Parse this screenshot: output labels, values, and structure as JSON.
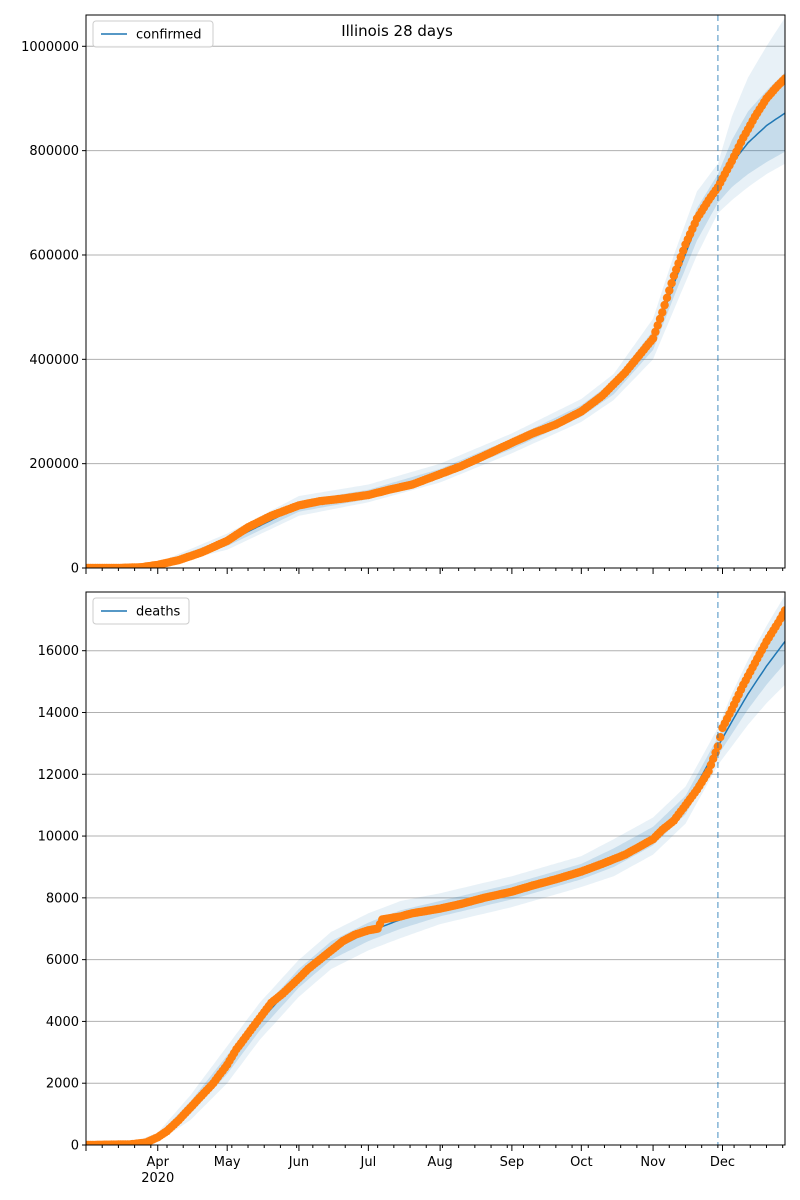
{
  "colors": {
    "fit": "#1f77b4",
    "observed": "#ff7f0e",
    "band": "#1f77b4",
    "grid": "#b0b0b0",
    "split": "#1f77b4"
  },
  "chart_data": [
    {
      "type": "line",
      "title": "Illinois 28 days",
      "legend": "upper-left",
      "grid": "y",
      "x_range": [
        "2020-03-01",
        "2020-12-28"
      ],
      "split_date": "2020-11-29",
      "ylim": [
        0,
        1060000
      ],
      "yticks": [
        0,
        200000,
        400000,
        600000,
        800000,
        1000000
      ],
      "ytick_labels": [
        "0",
        "200000",
        "400000",
        "600000",
        "800000",
        "1000000"
      ],
      "series": [
        {
          "name": "confirmed",
          "role": "fit"
        },
        {
          "role": "observed"
        }
      ],
      "observed": {
        "dates": [
          "2020-03-01",
          "2020-03-15",
          "2020-03-25",
          "2020-04-01",
          "2020-04-10",
          "2020-04-20",
          "2020-05-01",
          "2020-05-10",
          "2020-05-20",
          "2020-06-01",
          "2020-06-10",
          "2020-06-20",
          "2020-07-01",
          "2020-07-10",
          "2020-07-20",
          "2020-08-01",
          "2020-08-10",
          "2020-08-20",
          "2020-09-01",
          "2020-09-10",
          "2020-09-20",
          "2020-10-01",
          "2020-10-10",
          "2020-10-20",
          "2020-11-01",
          "2020-11-05",
          "2020-11-10",
          "2020-11-15",
          "2020-11-20",
          "2020-11-25",
          "2020-11-29",
          "2020-12-05",
          "2020-12-10",
          "2020-12-15",
          "2020-12-20",
          "2020-12-25",
          "2020-12-28"
        ],
        "values": [
          0,
          100,
          1500,
          6000,
          15000,
          30000,
          52000,
          78000,
          100000,
          120000,
          128000,
          133000,
          140000,
          150000,
          160000,
          180000,
          195000,
          215000,
          240000,
          258000,
          275000,
          300000,
          330000,
          375000,
          440000,
          490000,
          560000,
          620000,
          670000,
          705000,
          730000,
          780000,
          825000,
          865000,
          900000,
          925000,
          938000
        ]
      },
      "fit": {
        "dates": [
          "2020-03-01",
          "2020-04-01",
          "2020-05-01",
          "2020-06-01",
          "2020-07-01",
          "2020-08-01",
          "2020-09-01",
          "2020-10-01",
          "2020-10-15",
          "2020-11-01",
          "2020-11-10",
          "2020-11-20",
          "2020-11-29",
          "2020-12-05",
          "2020-12-12",
          "2020-12-20",
          "2020-12-28"
        ],
        "values": [
          0,
          6000,
          50000,
          118000,
          140000,
          180000,
          238000,
          300000,
          345000,
          435000,
          545000,
          660000,
          728000,
          775000,
          815000,
          848000,
          872000
        ],
        "low1": [
          0,
          4000,
          42000,
          108000,
          132000,
          172000,
          228000,
          290000,
          333000,
          418000,
          520000,
          628000,
          700000,
          730000,
          755000,
          778000,
          798000
        ],
        "high1": [
          0,
          8000,
          58000,
          128000,
          150000,
          190000,
          248000,
          312000,
          358000,
          455000,
          570000,
          690000,
          755000,
          820000,
          875000,
          915000,
          950000
        ],
        "low2": [
          0,
          2500,
          35000,
          100000,
          126000,
          164000,
          220000,
          280000,
          322000,
          400000,
          495000,
          600000,
          680000,
          705000,
          730000,
          755000,
          775000
        ],
        "high2": [
          0,
          10000,
          66000,
          138000,
          160000,
          200000,
          258000,
          324000,
          372000,
          478000,
          600000,
          722000,
          775000,
          865000,
          940000,
          1000000,
          1055000
        ]
      }
    },
    {
      "type": "line",
      "legend": "upper-left",
      "grid": "y",
      "x_range": [
        "2020-03-01",
        "2020-12-28"
      ],
      "split_date": "2020-11-29",
      "ylim": [
        0,
        17900
      ],
      "yticks": [
        0,
        2000,
        4000,
        6000,
        8000,
        10000,
        12000,
        14000,
        16000
      ],
      "ytick_labels": [
        "0",
        "2000",
        "4000",
        "6000",
        "8000",
        "10000",
        "12000",
        "14000",
        "16000"
      ],
      "xtick_labels": [
        {
          "date": "2020-04-01",
          "label": "Apr",
          "year": "2020"
        },
        {
          "date": "2020-05-01",
          "label": "May"
        },
        {
          "date": "2020-06-01",
          "label": "Jun"
        },
        {
          "date": "2020-07-01",
          "label": "Jul"
        },
        {
          "date": "2020-08-01",
          "label": "Aug"
        },
        {
          "date": "2020-09-01",
          "label": "Sep"
        },
        {
          "date": "2020-10-01",
          "label": "Oct"
        },
        {
          "date": "2020-11-01",
          "label": "Nov"
        },
        {
          "date": "2020-12-01",
          "label": "Dec"
        }
      ],
      "series": [
        {
          "name": "deaths",
          "role": "fit"
        },
        {
          "role": "observed"
        }
      ],
      "observed": {
        "dates": [
          "2020-03-01",
          "2020-03-20",
          "2020-03-27",
          "2020-04-01",
          "2020-04-05",
          "2020-04-10",
          "2020-04-15",
          "2020-04-20",
          "2020-04-25",
          "2020-05-01",
          "2020-05-05",
          "2020-05-10",
          "2020-05-15",
          "2020-05-20",
          "2020-05-25",
          "2020-06-01",
          "2020-06-05",
          "2020-06-10",
          "2020-06-15",
          "2020-06-20",
          "2020-06-25",
          "2020-07-01",
          "2020-07-05",
          "2020-07-07",
          "2020-07-15",
          "2020-07-20",
          "2020-08-01",
          "2020-08-10",
          "2020-08-20",
          "2020-09-01",
          "2020-09-10",
          "2020-09-20",
          "2020-10-01",
          "2020-10-10",
          "2020-10-20",
          "2020-11-01",
          "2020-11-05",
          "2020-11-10",
          "2020-11-15",
          "2020-11-20",
          "2020-11-25",
          "2020-11-29",
          "2020-12-01",
          "2020-12-05",
          "2020-12-10",
          "2020-12-15",
          "2020-12-20",
          "2020-12-25",
          "2020-12-28"
        ],
        "values": [
          0,
          20,
          80,
          250,
          450,
          800,
          1200,
          1600,
          2000,
          2600,
          3100,
          3600,
          4100,
          4600,
          4900,
          5400,
          5700,
          6000,
          6300,
          6600,
          6800,
          6950,
          7000,
          7300,
          7400,
          7500,
          7650,
          7800,
          8000,
          8200,
          8400,
          8600,
          8850,
          9100,
          9400,
          9900,
          10200,
          10500,
          11000,
          11500,
          12100,
          12900,
          13500,
          14100,
          14900,
          15600,
          16300,
          16900,
          17300
        ]
      },
      "fit": {
        "dates": [
          "2020-03-01",
          "2020-03-20",
          "2020-04-01",
          "2020-04-15",
          "2020-05-01",
          "2020-05-15",
          "2020-06-01",
          "2020-06-15",
          "2020-07-01",
          "2020-07-15",
          "2020-08-01",
          "2020-09-01",
          "2020-10-01",
          "2020-10-15",
          "2020-11-01",
          "2020-11-15",
          "2020-11-29",
          "2020-12-05",
          "2020-12-12",
          "2020-12-20",
          "2020-12-28"
        ],
        "values": [
          0,
          20,
          250,
          1200,
          2600,
          4000,
          5400,
          6300,
          6900,
          7300,
          7650,
          8200,
          8850,
          9300,
          10000,
          11000,
          12900,
          13700,
          14600,
          15500,
          16300
        ],
        "low1": [
          0,
          10,
          180,
          1000,
          2300,
          3700,
          5100,
          6000,
          6600,
          7000,
          7400,
          7950,
          8600,
          9000,
          9700,
          10700,
          12600,
          13300,
          14100,
          14900,
          15600
        ],
        "high1": [
          0,
          30,
          320,
          1400,
          2900,
          4300,
          5700,
          6600,
          7200,
          7600,
          7900,
          8450,
          9100,
          9600,
          10300,
          11300,
          13200,
          14100,
          15100,
          16100,
          17000
        ],
        "low2": [
          0,
          5,
          100,
          800,
          2000,
          3400,
          4800,
          5700,
          6300,
          6700,
          7150,
          7700,
          8350,
          8700,
          9400,
          10400,
          12300,
          12900,
          13600,
          14300,
          14900
        ],
        "high2": [
          0,
          40,
          400,
          1600,
          3200,
          4600,
          6000,
          6900,
          7500,
          7900,
          8150,
          8700,
          9350,
          9900,
          10600,
          11600,
          13500,
          14600,
          15700,
          16800,
          17800
        ]
      }
    }
  ]
}
